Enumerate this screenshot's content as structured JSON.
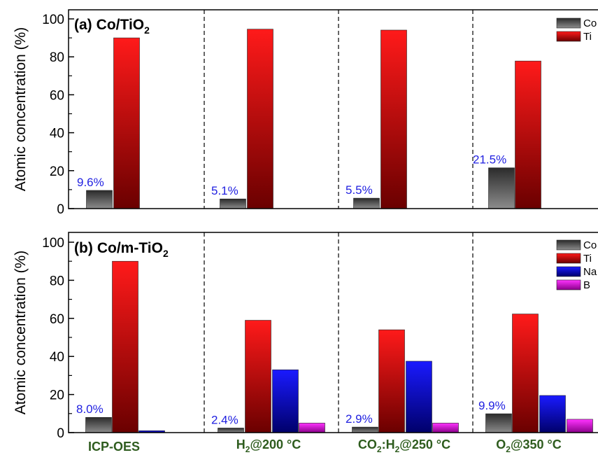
{
  "chart_data": [
    {
      "type": "bar",
      "panel_label": "(a)",
      "title_main": "Co/TiO",
      "title_sub": "2",
      "ylabel": "Atomic concentration (%)",
      "ylim": [
        0,
        100
      ],
      "yticks": [
        "0",
        "20",
        "40",
        "60",
        "80",
        "100"
      ],
      "categories": [
        "ICP-OES",
        "H2@200 °C",
        "CO2:H2@250 °C",
        "O2@350 °C"
      ],
      "series": [
        {
          "name": "Co",
          "values": [
            9.6,
            5.1,
            5.5,
            21.5
          ],
          "color": "#2b2b2b"
        },
        {
          "name": "Ti",
          "values": [
            90.0,
            94.6,
            94.1,
            77.8
          ],
          "color": "#e41a1a"
        }
      ],
      "co_labels": [
        "9.6%",
        "5.1%",
        "5.5%",
        "21.5%"
      ]
    },
    {
      "type": "bar",
      "panel_label": "(b)",
      "title_main": "Co/m-TiO",
      "title_sub": "2",
      "ylabel": "Atomic concentration (%)",
      "ylim": [
        0,
        100
      ],
      "yticks": [
        "0",
        "20",
        "40",
        "60",
        "80",
        "100"
      ],
      "categories": [
        "ICP-OES",
        "H2@200 °C",
        "CO2:H2@250 °C",
        "O2@350 °C"
      ],
      "series": [
        {
          "name": "Co",
          "values": [
            8.0,
            2.4,
            2.9,
            9.9
          ],
          "color": "#2b2b2b"
        },
        {
          "name": "Ti",
          "values": [
            90.0,
            59.0,
            54.0,
            62.3
          ],
          "color": "#e41a1a"
        },
        {
          "name": "Na",
          "values": [
            1.0,
            33.0,
            37.5,
            19.5
          ],
          "color": "#1a1ae4"
        },
        {
          "name": "B",
          "values": [
            0,
            5.0,
            5.0,
            7.0
          ],
          "color": "#e01ae0"
        }
      ],
      "co_labels": [
        "8.0%",
        "2.4%",
        "2.9%",
        "9.9%"
      ]
    }
  ],
  "x_categories": [
    {
      "pre": "ICP-OES",
      "s1": "",
      "mid": "",
      "s2": "",
      "post": ""
    },
    {
      "pre": "H",
      "s1": "2",
      "mid": "@200 °C",
      "s2": "",
      "post": ""
    },
    {
      "pre": "CO",
      "s1": "2",
      "mid": ":H",
      "s2": "2",
      "post": "@250 °C"
    },
    {
      "pre": "O",
      "s1": "2",
      "mid": "@350 °C",
      "s2": "",
      "post": ""
    }
  ],
  "colors": {
    "co": "#2b2b2b",
    "ti": "#e41a1a",
    "na": "#1a1ae4",
    "b": "#e01ae0",
    "percent_label": "#1f1fe0",
    "category_label": "#2e5c1e"
  }
}
